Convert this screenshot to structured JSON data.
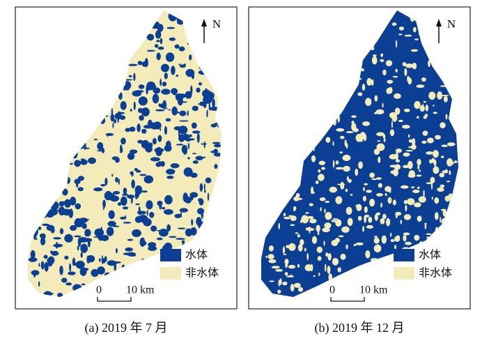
{
  "panels": [
    {
      "north": "N",
      "legend": [
        {
          "label": "水体",
          "color": "#0b3f93"
        },
        {
          "label": "非水体",
          "color": "#f4ebba"
        }
      ],
      "scale": {
        "start": "0",
        "end": "10 km"
      },
      "caption": "(a) 2019 年 7 月"
    },
    {
      "north": "N",
      "legend": [
        {
          "label": "水体",
          "color": "#0b3f93"
        },
        {
          "label": "非水体",
          "color": "#f4ebba"
        }
      ],
      "scale": {
        "start": "0",
        "end": "10 km"
      },
      "caption": "(b) 2019 年 12 月"
    }
  ]
}
